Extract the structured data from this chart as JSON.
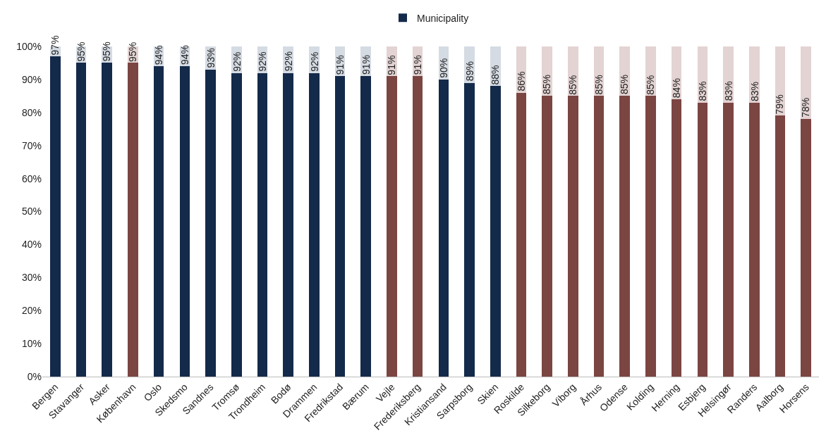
{
  "chart_data": {
    "type": "bar",
    "stacked": true,
    "legend": "top",
    "grid": false,
    "categories": [
      "Bergen",
      "Stavanger",
      "Asker",
      "København",
      "Oslo",
      "Skedsmo",
      "Sandnes",
      "Tromsø",
      "Trondheim",
      "Bodø",
      "Drammen",
      "Fredrikstad",
      "Bærum",
      "Vejle",
      "Frederiksberg",
      "Kristiansand",
      "Sarpsborg",
      "Skien",
      "Roskilde",
      "Silkeborg",
      "Viborg",
      "Århus",
      "Odense",
      "Kolding",
      "Herning",
      "Esbjerg",
      "Helsingør",
      "Randers",
      "Aalborg",
      "Horsens"
    ],
    "series": [
      {
        "name": "Municipality",
        "colors": [
          "#142a4a",
          "#142a4a",
          "#142a4a",
          "#7b4542",
          "#142a4a",
          "#142a4a",
          "#142a4a",
          "#142a4a",
          "#142a4a",
          "#142a4a",
          "#142a4a",
          "#142a4a",
          "#142a4a",
          "#7b4542",
          "#7b4542",
          "#142a4a",
          "#142a4a",
          "#142a4a",
          "#7b4542",
          "#7b4542",
          "#7b4542",
          "#7b4542",
          "#7b4542",
          "#7b4542",
          "#7b4542",
          "#7b4542",
          "#7b4542",
          "#7b4542",
          "#7b4542",
          "#7b4542"
        ],
        "values": [
          97,
          95,
          95,
          95,
          94,
          94,
          93,
          92,
          92,
          92,
          92,
          91,
          91,
          91,
          91,
          90,
          89,
          88,
          86,
          85,
          85,
          85,
          85,
          85,
          84,
          83,
          83,
          83,
          79,
          78
        ],
        "value_labels": [
          "97%",
          "95%",
          "95%",
          "95%",
          "94%",
          "94%",
          "93%",
          "92%",
          "92%",
          "92%",
          "92%",
          "91%",
          "91%",
          "91%",
          "91%",
          "90%",
          "89%",
          "88%",
          "86%",
          "85%",
          "85%",
          "85%",
          "85%",
          "85%",
          "84%",
          "83%",
          "83%",
          "83%",
          "79%",
          "78%"
        ]
      },
      {
        "colors": [
          "#d5dbe3",
          "#d5dbe3",
          "#d5dbe3",
          "#e3d3d3",
          "#d5dbe3",
          "#d5dbe3",
          "#d5dbe3",
          "#d5dbe3",
          "#d5dbe3",
          "#d5dbe3",
          "#d5dbe3",
          "#d5dbe3",
          "#d5dbe3",
          "#e3d3d3",
          "#e3d3d3",
          "#d5dbe3",
          "#d5dbe3",
          "#d5dbe3",
          "#e3d3d3",
          "#e3d3d3",
          "#e3d3d3",
          "#e3d3d3",
          "#e3d3d3",
          "#e3d3d3",
          "#e3d3d3",
          "#e3d3d3",
          "#e3d3d3",
          "#e3d3d3",
          "#e3d3d3",
          "#e3d3d3"
        ],
        "values": [
          3,
          5,
          5,
          5,
          6,
          6,
          7,
          8,
          8,
          8,
          8,
          9,
          9,
          9,
          9,
          10,
          11,
          12,
          14,
          15,
          15,
          15,
          15,
          15,
          16,
          17,
          17,
          17,
          21,
          22
        ]
      }
    ],
    "ylim": [
      0,
      100
    ],
    "yticks": [
      {
        "value": 0,
        "label": "0%"
      },
      {
        "value": 10,
        "label": "10%"
      },
      {
        "value": 20,
        "label": "20%"
      },
      {
        "value": 30,
        "label": "30%"
      },
      {
        "value": 40,
        "label": "40%"
      },
      {
        "value": 50,
        "label": "50%"
      },
      {
        "value": 60,
        "label": "60%"
      },
      {
        "value": 70,
        "label": "70%"
      },
      {
        "value": 80,
        "label": "80%"
      },
      {
        "value": 90,
        "label": "90%"
      },
      {
        "value": 100,
        "label": "100%"
      }
    ]
  }
}
